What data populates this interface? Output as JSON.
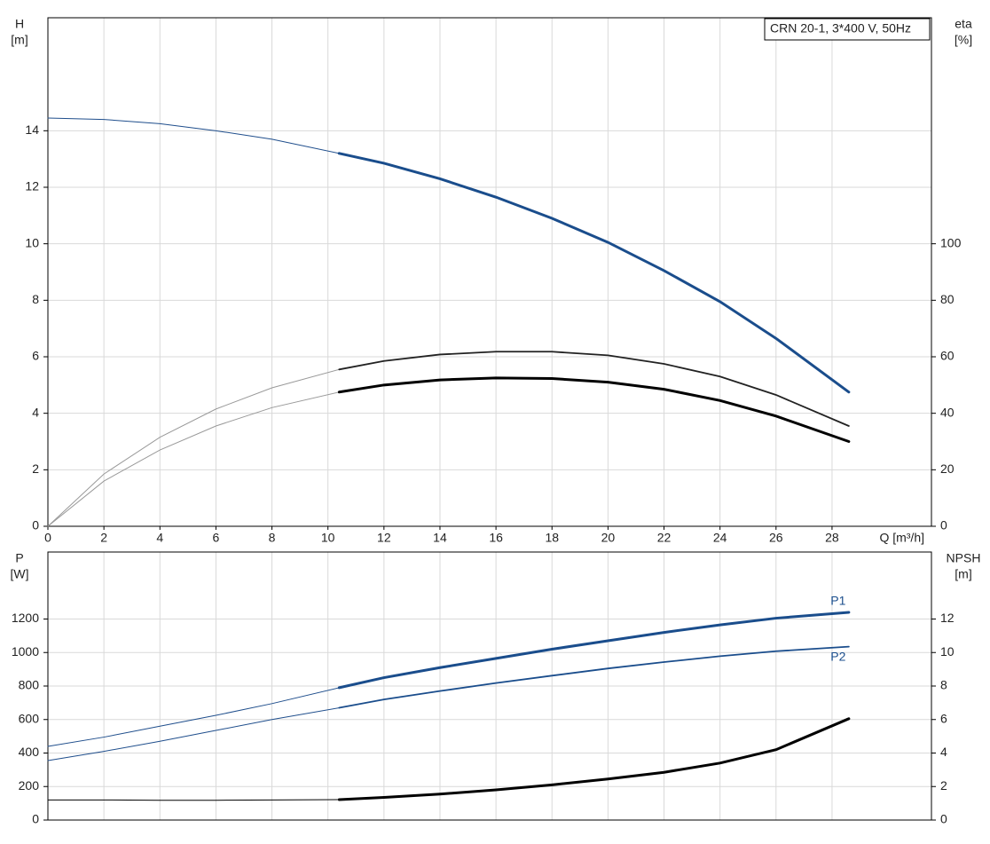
{
  "chart_data": [
    {
      "type": "line",
      "ylabel": "H",
      "yunit": "[m]",
      "y2label": "eta",
      "y2unit": "[%]",
      "xlabel": "Q [m³/h]",
      "annotation": "CRN 20-1, 3*400 V, 50Hz",
      "x": [
        0,
        2,
        4,
        6,
        8,
        10.4,
        12,
        14,
        16,
        18,
        20,
        22,
        24,
        26,
        28.6
      ],
      "xlim": [
        0,
        31.55
      ],
      "xticks": [
        0,
        2,
        4,
        6,
        8,
        10,
        12,
        14,
        16,
        18,
        20,
        22,
        24,
        26,
        28
      ],
      "ylim": [
        0,
        18
      ],
      "yticks": [
        0,
        2,
        4,
        6,
        8,
        10,
        12,
        14
      ],
      "y2lim": [
        0,
        180
      ],
      "y2ticks": [
        0,
        20,
        40,
        60,
        80,
        100
      ],
      "grid": true,
      "series": [
        {
          "color": "#1f4e8c",
          "width": 1,
          "values": [
            14.45,
            14.4,
            14.25,
            14.0,
            13.7,
            13.2,
            null,
            null,
            null,
            null,
            null,
            null,
            null,
            null,
            null
          ]
        },
        {
          "color": "#1a4d8c",
          "width": 3,
          "values": [
            null,
            null,
            null,
            null,
            null,
            13.2,
            12.85,
            12.3,
            11.65,
            10.9,
            10.05,
            9.05,
            7.95,
            6.65,
            4.75
          ]
        },
        {
          "color": "#999999",
          "width": 1,
          "axis": "y2",
          "values": [
            0,
            18.5,
            31.5,
            41.5,
            49,
            55.5,
            null,
            null,
            null,
            null,
            null,
            null,
            null,
            null,
            null
          ]
        },
        {
          "color": "#222222",
          "width": 1.8,
          "axis": "y2",
          "values": [
            null,
            null,
            null,
            null,
            null,
            55.5,
            58.5,
            60.8,
            61.8,
            61.8,
            60.5,
            57.5,
            53,
            46.5,
            35.5
          ]
        },
        {
          "color": "#999999",
          "width": 1,
          "axis": "y2",
          "values": [
            0,
            16,
            27,
            35.5,
            42,
            47.5,
            null,
            null,
            null,
            null,
            null,
            null,
            null,
            null,
            null
          ]
        },
        {
          "color": "#000000",
          "width": 3,
          "axis": "y2",
          "values": [
            null,
            null,
            null,
            null,
            null,
            47.5,
            50,
            51.8,
            52.5,
            52.3,
            51,
            48.5,
            44.5,
            39,
            30
          ]
        }
      ]
    },
    {
      "type": "line",
      "ylabel": "P",
      "yunit": "[W]",
      "y2label": "NPSH",
      "y2unit": "[m]",
      "x": [
        0,
        2,
        4,
        6,
        8,
        10.4,
        12,
        14,
        16,
        18,
        20,
        22,
        24,
        26,
        28.6
      ],
      "xlim": [
        0,
        31.55
      ],
      "xticks": [
        0,
        2,
        4,
        6,
        8,
        10,
        12,
        14,
        16,
        18,
        20,
        22,
        24,
        26,
        28
      ],
      "xtick_labels": false,
      "ylim": [
        0,
        1600
      ],
      "yticks": [
        0,
        200,
        400,
        600,
        800,
        1000,
        1200
      ],
      "y2lim": [
        0,
        16
      ],
      "y2ticks": [
        0,
        2,
        4,
        6,
        8,
        10,
        12
      ],
      "grid": true,
      "series": [
        {
          "color": "#1f4e8c",
          "width": 1,
          "values": [
            440,
            495,
            560,
            625,
            695,
            790,
            null,
            null,
            null,
            null,
            null,
            null,
            null,
            null,
            null
          ]
        },
        {
          "name": "P1",
          "color": "#1a4d8c",
          "width": 3,
          "values": [
            null,
            null,
            null,
            null,
            null,
            790,
            850,
            910,
            965,
            1020,
            1070,
            1120,
            1165,
            1205,
            1240
          ]
        },
        {
          "color": "#1f4e8c",
          "width": 1,
          "values": [
            355,
            410,
            470,
            535,
            600,
            670,
            null,
            null,
            null,
            null,
            null,
            null,
            null,
            null,
            null
          ]
        },
        {
          "name": "P2",
          "color": "#1a4d8c",
          "width": 1.8,
          "values": [
            null,
            null,
            null,
            null,
            null,
            670,
            720,
            770,
            818,
            862,
            905,
            943,
            978,
            1008,
            1035
          ]
        },
        {
          "color": "#000000",
          "width": 1,
          "axis": "y2",
          "values": [
            1.2,
            1.2,
            1.18,
            1.18,
            1.2,
            1.22,
            null,
            null,
            null,
            null,
            null,
            null,
            null,
            null,
            null
          ]
        },
        {
          "color": "#000000",
          "width": 3,
          "axis": "y2",
          "values": [
            null,
            null,
            null,
            null,
            null,
            1.22,
            1.35,
            1.55,
            1.8,
            2.1,
            2.45,
            2.85,
            3.4,
            4.2,
            6.05
          ]
        }
      ]
    }
  ]
}
